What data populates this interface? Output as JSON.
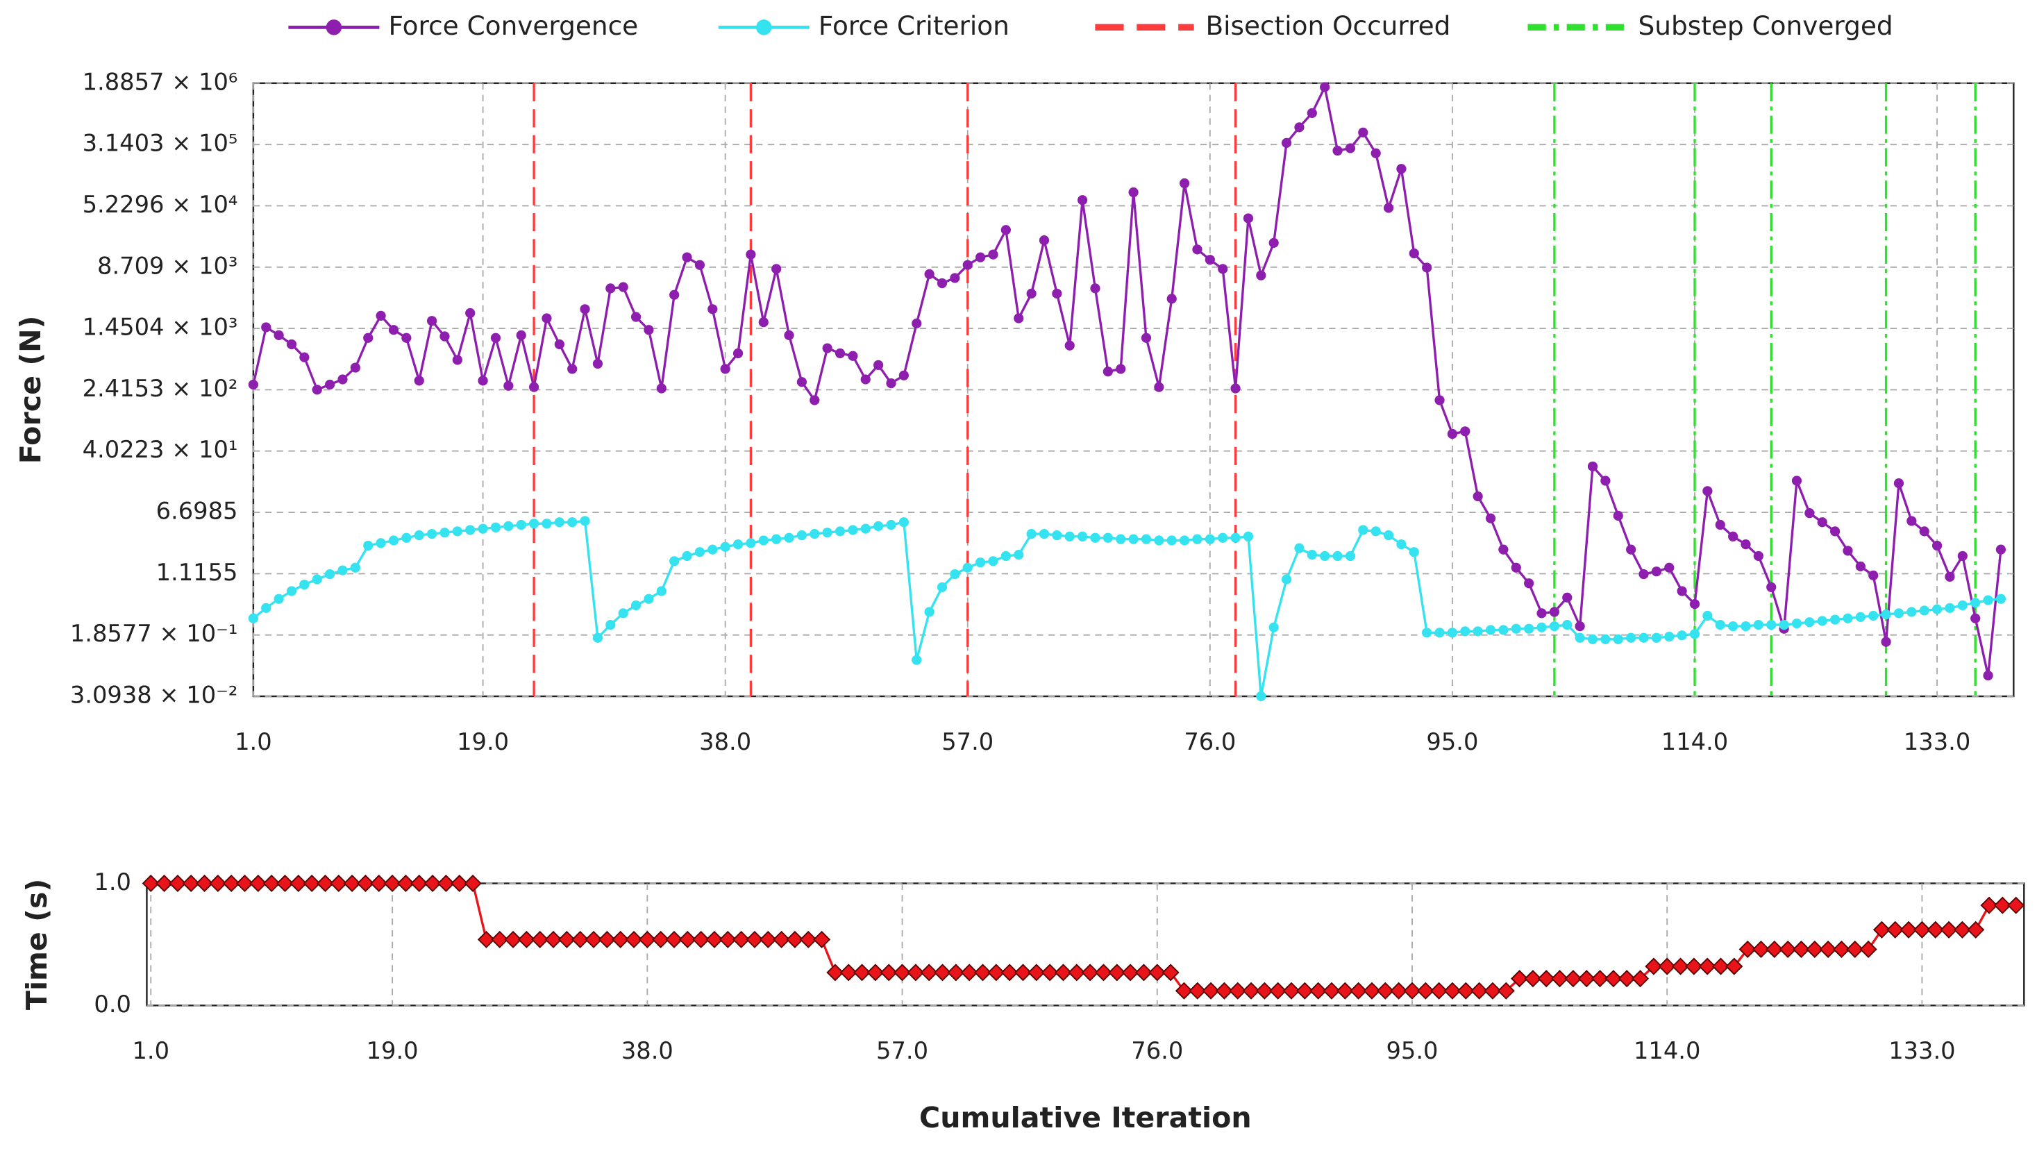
{
  "chart_data": [
    {
      "type": "line",
      "ylabel": "Force (N)",
      "log_y": true,
      "grid": true,
      "legend": "top",
      "xlim": [
        1,
        139
      ],
      "xticks": [
        {
          "value": 1,
          "label": "1.0"
        },
        {
          "value": 19,
          "label": "19.0"
        },
        {
          "value": 38,
          "label": "38.0"
        },
        {
          "value": 57,
          "label": "57.0"
        },
        {
          "value": 76,
          "label": "76.0"
        },
        {
          "value": 95,
          "label": "95.0"
        },
        {
          "value": 114,
          "label": "114.0"
        },
        {
          "value": 133,
          "label": "133.0"
        }
      ],
      "ylim": [
        0.030938,
        1885700
      ],
      "yticks": [
        {
          "value": 0.030938,
          "label": "3.0938 × 10⁻²"
        },
        {
          "value": 0.18577,
          "label": "1.8577 × 10⁻¹"
        },
        1.1155,
        6.6985,
        {
          "value": 40.223,
          "label": "4.0223 × 10¹"
        },
        {
          "value": 241.53,
          "label": "2.4153 × 10²"
        },
        {
          "value": 1450.4,
          "label": "1.4504 × 10³"
        },
        {
          "value": 8709,
          "label": "8.709 × 10³"
        },
        {
          "value": 52296,
          "label": "5.2296 × 10⁴"
        },
        {
          "value": 314030,
          "label": "3.1403 × 10⁵"
        },
        {
          "value": 1885700,
          "label": "1.8857 × 10⁶"
        }
      ],
      "x": [
        1,
        2,
        3,
        4,
        5,
        6,
        7,
        8,
        9,
        10,
        11,
        12,
        13,
        14,
        15,
        16,
        17,
        18,
        19,
        20,
        21,
        22,
        23,
        24,
        25,
        26,
        27,
        28,
        29,
        30,
        31,
        32,
        33,
        34,
        35,
        36,
        37,
        38,
        39,
        40,
        41,
        42,
        43,
        44,
        45,
        46,
        47,
        48,
        49,
        50,
        51,
        52,
        53,
        54,
        55,
        56,
        57,
        58,
        59,
        60,
        61,
        62,
        63,
        64,
        65,
        66,
        67,
        68,
        69,
        70,
        71,
        72,
        73,
        74,
        75,
        76,
        77,
        78,
        79,
        80,
        81,
        82,
        83,
        84,
        85,
        86,
        87,
        88,
        89,
        90,
        91,
        92,
        93,
        94,
        95,
        96,
        97,
        98,
        99,
        100,
        101,
        102,
        103,
        104,
        105,
        106,
        107,
        108,
        109,
        110,
        111,
        112,
        113,
        114,
        115,
        116,
        117,
        118,
        119,
        120,
        121,
        122,
        123,
        124,
        125,
        126,
        127,
        128,
        129,
        130,
        131,
        132,
        133,
        134,
        135,
        136,
        137,
        138
      ],
      "series": [
        {
          "name": "Force Convergence",
          "color": "#8e1fae",
          "marker": "circle",
          "values": [
            281,
            1500,
            1190,
            912,
            624,
            242,
            281,
            327,
            461,
            1100,
            2100,
            1390,
            1100,
            315,
            1810,
            1150,
            578,
            2270,
            315,
            1100,
            271,
            1190,
            261,
            1950,
            912,
            444,
            2550,
            517,
            4680,
            4860,
            2030,
            1390,
            251,
            3870,
            11600,
            9270,
            2550,
            444,
            700,
            12600,
            1740,
            8260,
            1190,
            303,
            178,
            814,
            700,
            649,
            327,
            497,
            292,
            367,
            1680,
            7100,
            5440,
            6340,
            9270,
            11600,
            12600,
            25800,
            1950,
            4020,
            19100,
            4020,
            879,
            61800,
            4680,
            411,
            444,
            77600,
            1100,
            261,
            3450,
            101000,
            14600,
            10800,
            8260,
            251,
            36300,
            6840,
            17700,
            329000,
            519000,
            787000,
            1680000,
            262000,
            282000,
            446000,
            243000,
            49200,
            154000,
            13000,
            8590,
            178,
            66.4,
            71.6,
            10.7,
            5.63,
            2.26,
            1.33,
            0.842,
            0.351,
            0.365,
            0.555,
            0.24,
            25.7,
            16.9,
            6.07,
            2.26,
            1.1,
            1.19,
            1.33,
            0.671,
            0.459,
            12.5,
            4.65,
            3.31,
            2.63,
            1.87,
            0.752,
            0.223,
            16.9,
            6.55,
            5.02,
            3.85,
            2.18,
            1.38,
            1.06,
            0.152,
            15.7,
            5.21,
            3.85,
            2.53,
            1.02,
            1.87,
            0.302,
            0.0568,
            2.26
          ]
        },
        {
          "name": "Force Criterion",
          "color": "#35e2f0",
          "marker": "circle",
          "values": [
            0.302,
            0.409,
            0.534,
            0.671,
            0.811,
            0.944,
            1.1,
            1.23,
            1.33,
            2.53,
            2.73,
            2.95,
            3.18,
            3.43,
            3.57,
            3.71,
            3.85,
            4.0,
            4.15,
            4.31,
            4.48,
            4.65,
            4.83,
            4.83,
            5.02,
            5.02,
            5.21,
            0.171,
            0.25,
            0.351,
            0.442,
            0.534,
            0.671,
            1.61,
            1.87,
            2.1,
            2.26,
            2.44,
            2.63,
            2.73,
            2.95,
            3.06,
            3.18,
            3.43,
            3.57,
            3.71,
            3.85,
            4.0,
            4.15,
            4.48,
            4.65,
            5.02,
            0.0895,
            0.365,
            0.752,
            1.1,
            1.33,
            1.55,
            1.61,
            1.87,
            1.94,
            3.57,
            3.57,
            3.43,
            3.31,
            3.31,
            3.18,
            3.18,
            3.06,
            3.06,
            3.06,
            2.95,
            2.95,
            2.95,
            3.06,
            3.06,
            3.18,
            3.18,
            3.31,
            0.031,
            0.232,
            0.944,
            2.35,
            1.94,
            1.87,
            1.87,
            1.87,
            4.0,
            3.85,
            3.43,
            2.63,
            2.1,
            0.199,
            0.199,
            0.199,
            0.207,
            0.207,
            0.215,
            0.215,
            0.223,
            0.223,
            0.232,
            0.24,
            0.25,
            0.171,
            0.164,
            0.164,
            0.164,
            0.171,
            0.171,
            0.171,
            0.177,
            0.184,
            0.191,
            0.326,
            0.25,
            0.24,
            0.24,
            0.25,
            0.25,
            0.25,
            0.26,
            0.27,
            0.28,
            0.291,
            0.302,
            0.314,
            0.326,
            0.339,
            0.351,
            0.365,
            0.38,
            0.394,
            0.409,
            0.442,
            0.477,
            0.514,
            0.534
          ]
        }
      ],
      "vlines": [
        {
          "name": "Bisection Occurred",
          "color": "#ff3b3b",
          "dash": "dashed",
          "x": [
            23,
            40,
            57,
            78
          ]
        },
        {
          "name": "Substep Converged",
          "color": "#2fe02f",
          "dash": "dashdot",
          "x": [
            103,
            114,
            120,
            129,
            136
          ]
        }
      ]
    },
    {
      "type": "line",
      "xlabel": "Cumulative Iteration",
      "ylabel": "Time (s)",
      "grid": true,
      "xlim": [
        0.7,
        140.6
      ],
      "xticks": [
        {
          "value": 1,
          "label": "1.0"
        },
        {
          "value": 19,
          "label": "19.0"
        },
        {
          "value": 38,
          "label": "38.0"
        },
        {
          "value": 57,
          "label": "57.0"
        },
        {
          "value": 76,
          "label": "76.0"
        },
        {
          "value": 95,
          "label": "95.0"
        },
        {
          "value": 114,
          "label": "114.0"
        },
        {
          "value": 133,
          "label": "133.0"
        }
      ],
      "ylim": [
        0,
        1
      ],
      "yticks": [
        {
          "value": 0,
          "label": "0.0"
        },
        {
          "value": 1,
          "label": "1.0"
        }
      ],
      "x": [
        1,
        2,
        3,
        4,
        5,
        6,
        7,
        8,
        9,
        10,
        11,
        12,
        13,
        14,
        15,
        16,
        17,
        18,
        19,
        20,
        21,
        22,
        23,
        24,
        25,
        26,
        27,
        28,
        29,
        30,
        31,
        32,
        33,
        34,
        35,
        36,
        37,
        38,
        39,
        40,
        41,
        42,
        43,
        44,
        45,
        46,
        47,
        48,
        49,
        50,
        51,
        52,
        53,
        54,
        55,
        56,
        57,
        58,
        59,
        60,
        61,
        62,
        63,
        64,
        65,
        66,
        67,
        68,
        69,
        70,
        71,
        72,
        73,
        74,
        75,
        76,
        77,
        78,
        79,
        80,
        81,
        82,
        83,
        84,
        85,
        86,
        87,
        88,
        89,
        90,
        91,
        92,
        93,
        94,
        95,
        96,
        97,
        98,
        99,
        100,
        101,
        102,
        103,
        104,
        105,
        106,
        107,
        108,
        109,
        110,
        111,
        112,
        113,
        114,
        115,
        116,
        117,
        118,
        119,
        120,
        121,
        122,
        123,
        124,
        125,
        126,
        127,
        128,
        129,
        130,
        131,
        132,
        133,
        134,
        135,
        136,
        137,
        138,
        139,
        140
      ],
      "series": [
        {
          "color": "#e8141a",
          "marker": "diamond",
          "values": [
            1,
            1,
            1,
            1,
            1,
            1,
            1,
            1,
            1,
            1,
            1,
            1,
            1,
            1,
            1,
            1,
            1,
            1,
            1,
            1,
            1,
            1,
            1,
            1,
            1,
            0.54,
            0.54,
            0.54,
            0.54,
            0.54,
            0.54,
            0.54,
            0.54,
            0.54,
            0.54,
            0.54,
            0.54,
            0.54,
            0.54,
            0.54,
            0.54,
            0.54,
            0.54,
            0.54,
            0.54,
            0.54,
            0.54,
            0.54,
            0.54,
            0.54,
            0.54,
            0.27,
            0.27,
            0.27,
            0.27,
            0.27,
            0.27,
            0.27,
            0.27,
            0.27,
            0.27,
            0.27,
            0.27,
            0.27,
            0.27,
            0.27,
            0.27,
            0.27,
            0.27,
            0.27,
            0.27,
            0.27,
            0.27,
            0.27,
            0.27,
            0.27,
            0.27,
            0.12,
            0.12,
            0.12,
            0.12,
            0.12,
            0.12,
            0.12,
            0.12,
            0.12,
            0.12,
            0.12,
            0.12,
            0.12,
            0.12,
            0.12,
            0.12,
            0.12,
            0.12,
            0.12,
            0.12,
            0.12,
            0.12,
            0.12,
            0.12,
            0.12,
            0.22,
            0.22,
            0.22,
            0.22,
            0.22,
            0.22,
            0.22,
            0.22,
            0.22,
            0.22,
            0.32,
            0.32,
            0.32,
            0.32,
            0.32,
            0.32,
            0.32,
            0.46,
            0.46,
            0.46,
            0.46,
            0.46,
            0.46,
            0.46,
            0.46,
            0.46,
            0.46,
            0.62,
            0.62,
            0.62,
            0.62,
            0.62,
            0.62,
            0.62,
            0.62,
            0.82,
            0.82,
            0.82
          ]
        }
      ]
    }
  ]
}
